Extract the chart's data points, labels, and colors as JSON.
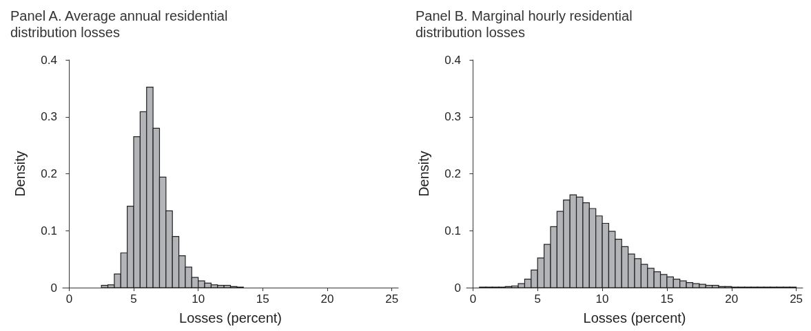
{
  "chart_data": [
    {
      "type": "histogram",
      "title": "Panel A. Average annual residential\ndistribution losses",
      "xlabel": "Losses (percent)",
      "ylabel": "Density",
      "color": "#b3b4b8",
      "bins": [
        2.5,
        3,
        3.5,
        4,
        4.5,
        5,
        5.5,
        6,
        6.5,
        7,
        7.5,
        8,
        8.5,
        9,
        9.5,
        10,
        10.5,
        11,
        11.5,
        12,
        12.5,
        13,
        13.5
      ],
      "values": [
        0.004,
        0.005,
        0.024,
        0.061,
        0.143,
        0.265,
        0.309,
        0.352,
        0.28,
        0.194,
        0.135,
        0.09,
        0.056,
        0.036,
        0.018,
        0.012,
        0.008,
        0.005,
        0.004,
        0.004,
        0.002,
        0.001
      ],
      "xlim": [
        -0.5,
        25.5
      ],
      "xticks": [
        0,
        5,
        10,
        15,
        20,
        25
      ],
      "ylim": [
        0,
        0.4
      ],
      "yticks": [
        0,
        0.1,
        0.2,
        0.3,
        0.4
      ],
      "grid": false
    },
    {
      "type": "histogram",
      "title": "Panel B. Marginal hourly residential\ndistribution losses",
      "xlabel": "Losses (percent)",
      "ylabel": "Density",
      "color": "#b3b4b8",
      "bins": [
        0.5,
        1,
        1.5,
        2,
        2.5,
        3,
        3.5,
        4,
        4.5,
        5,
        5.5,
        6,
        6.5,
        7,
        7.5,
        8,
        8.5,
        9,
        9.5,
        10,
        10.5,
        11,
        11.5,
        12,
        12.5,
        13,
        13.5,
        14,
        14.5,
        15,
        15.5,
        16,
        16.5,
        17,
        17.5,
        18,
        18.5,
        19,
        19.5,
        20,
        20.5,
        21,
        21.5,
        22,
        22.5,
        23,
        23.5,
        24,
        24.5,
        25
      ],
      "values": [
        0.001,
        0.001,
        0.001,
        0.001,
        0.002,
        0.003,
        0.007,
        0.015,
        0.031,
        0.052,
        0.076,
        0.107,
        0.134,
        0.154,
        0.163,
        0.159,
        0.149,
        0.139,
        0.126,
        0.113,
        0.099,
        0.085,
        0.072,
        0.059,
        0.051,
        0.041,
        0.034,
        0.028,
        0.023,
        0.019,
        0.015,
        0.012,
        0.009,
        0.007,
        0.006,
        0.004,
        0.004,
        0.002,
        0.002,
        0.001,
        0.001,
        0.001,
        0.001,
        0.001,
        0.001,
        0.001,
        0.001,
        0.001,
        0.001
      ],
      "xlim": [
        -0.5,
        25.5
      ],
      "xticks": [
        0,
        5,
        10,
        15,
        20,
        25
      ],
      "ylim": [
        0,
        0.4
      ],
      "yticks": [
        0,
        0.1,
        0.2,
        0.3,
        0.4
      ],
      "grid": false
    }
  ]
}
